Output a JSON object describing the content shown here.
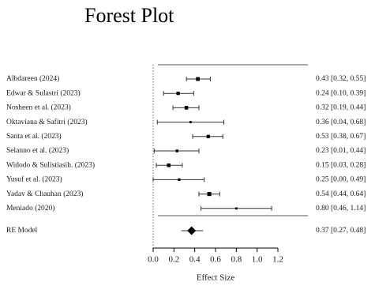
{
  "chart_data": {
    "type": "forest",
    "title": "Forest Plot",
    "xlabel": "Effect Size",
    "xlim": [
      0.0,
      1.2
    ],
    "x_ticks": [
      "0.0",
      "0.2",
      "0.4",
      "0.6",
      "0.8",
      "1.0",
      "1.2"
    ],
    "reference_line": 0,
    "studies": [
      {
        "label": "Albdareen (2024)",
        "estimate": 0.43,
        "ci_low": 0.32,
        "ci_high": 0.55,
        "text": "0.43 [0.32, 0.55]"
      },
      {
        "label": "Edwar & Sulastri (2023)",
        "estimate": 0.24,
        "ci_low": 0.1,
        "ci_high": 0.39,
        "text": "0.24 [0.10, 0.39]"
      },
      {
        "label": "Nosheen et al. (2023)",
        "estimate": 0.32,
        "ci_low": 0.19,
        "ci_high": 0.44,
        "text": "0.32 [0.19, 0.44]"
      },
      {
        "label": "Oktaviana & Safitri (2023)",
        "estimate": 0.36,
        "ci_low": 0.04,
        "ci_high": 0.68,
        "text": "0.36 [0.04, 0.68]"
      },
      {
        "label": "Santa et al. (2023)",
        "estimate": 0.53,
        "ci_low": 0.38,
        "ci_high": 0.67,
        "text": "0.53 [0.38, 0.67]"
      },
      {
        "label": "Selanno et al. (2023)",
        "estimate": 0.23,
        "ci_low": 0.01,
        "ci_high": 0.44,
        "text": "0.23 [0.01, 0.44]"
      },
      {
        "label": "Widodo & Sulistiasih. (2023)",
        "estimate": 0.15,
        "ci_low": 0.03,
        "ci_high": 0.28,
        "text": "0.15 [0.03, 0.28]"
      },
      {
        "label": "Yusuf et al. (2023)",
        "estimate": 0.25,
        "ci_low": 0.0,
        "ci_high": 0.49,
        "text": "0.25 [0.00, 0.49]"
      },
      {
        "label": "Yadav & Chauhan (2023)",
        "estimate": 0.54,
        "ci_low": 0.44,
        "ci_high": 0.64,
        "text": "0.54 [0.44, 0.64]"
      },
      {
        "label": "Meniado (2020)",
        "estimate": 0.8,
        "ci_low": 0.46,
        "ci_high": 1.14,
        "text": "0.80 [0.46, 1.14]"
      }
    ],
    "summary": {
      "label": "RE Model",
      "estimate": 0.37,
      "ci_low": 0.27,
      "ci_high": 0.48,
      "text": "0.37 [0.27, 0.48]"
    }
  }
}
